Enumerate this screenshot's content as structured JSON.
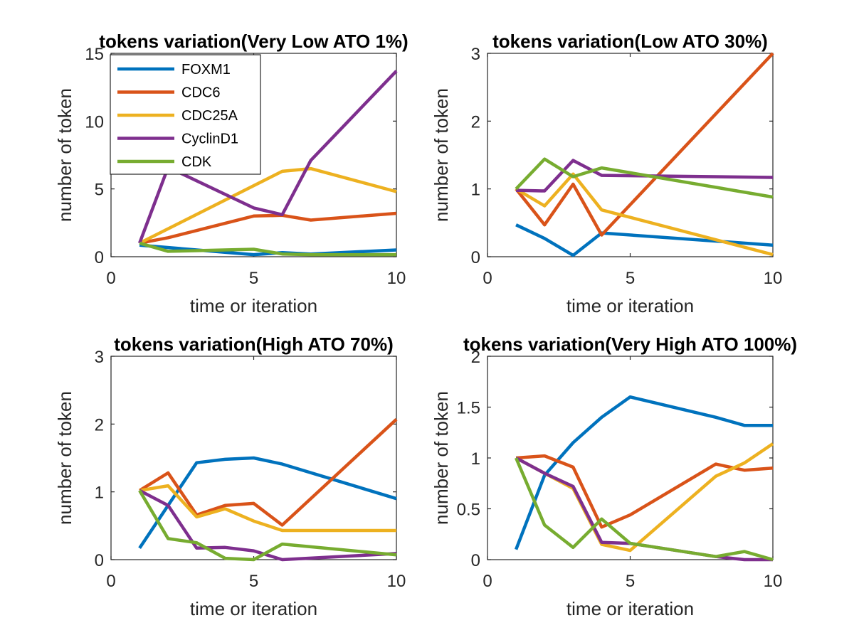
{
  "series_styles": [
    {
      "name": "FOXM1",
      "color": "#0072BD"
    },
    {
      "name": "CDC6",
      "color": "#D95319"
    },
    {
      "name": "CDC25A",
      "color": "#EDB120"
    },
    {
      "name": "CyclinD1",
      "color": "#7E2F8E"
    },
    {
      "name": "CDK",
      "color": "#77AC30"
    }
  ],
  "chart_data": [
    {
      "type": "line",
      "title": "tokens variation(Very Low ATO 1%)",
      "xlabel": "time or iteration",
      "ylabel": "number of token",
      "xlim": [
        0,
        10
      ],
      "ylim": [
        0,
        15
      ],
      "xticks": [
        0,
        5,
        10
      ],
      "yticks": [
        0,
        5,
        10,
        15
      ],
      "grid": false,
      "legend": "top-left",
      "series": [
        {
          "name": "FOXM1",
          "x": [
            1,
            5,
            6,
            7,
            10
          ],
          "y": [
            0.85,
            0.15,
            0.3,
            0.2,
            0.5
          ]
        },
        {
          "name": "CDC6",
          "x": [
            1,
            2,
            5,
            6,
            7,
            10
          ],
          "y": [
            1.0,
            1.4,
            3.0,
            3.05,
            2.7,
            3.2
          ]
        },
        {
          "name": "CDC25A",
          "x": [
            1,
            6,
            7,
            10
          ],
          "y": [
            1.0,
            6.3,
            6.5,
            4.8
          ]
        },
        {
          "name": "CyclinD1",
          "x": [
            1,
            2,
            5,
            6,
            7,
            10
          ],
          "y": [
            1.0,
            6.6,
            3.6,
            3.1,
            7.1,
            13.7
          ]
        },
        {
          "name": "CDK",
          "x": [
            1,
            2,
            5,
            6,
            7,
            10
          ],
          "y": [
            1.0,
            0.4,
            0.55,
            0.2,
            0.15,
            0.15
          ]
        }
      ]
    },
    {
      "type": "line",
      "title": "tokens variation(Low ATO 30%)",
      "xlabel": "time or iteration",
      "ylabel": "number of token",
      "xlim": [
        0,
        10
      ],
      "ylim": [
        0,
        3
      ],
      "xticks": [
        0,
        5,
        10
      ],
      "yticks": [
        0,
        1,
        2,
        3
      ],
      "grid": false,
      "series": [
        {
          "name": "FOXM1",
          "x": [
            1,
            2,
            3,
            4,
            10
          ],
          "y": [
            0.47,
            0.27,
            0.02,
            0.35,
            0.17
          ]
        },
        {
          "name": "CDC6",
          "x": [
            1,
            2,
            3,
            4,
            10
          ],
          "y": [
            1.0,
            0.47,
            1.07,
            0.32,
            3.0
          ]
        },
        {
          "name": "CDC25A",
          "x": [
            1,
            2,
            3,
            4,
            10
          ],
          "y": [
            1.0,
            0.75,
            1.22,
            0.69,
            0.03
          ]
        },
        {
          "name": "CyclinD1",
          "x": [
            1,
            2,
            3,
            4,
            10
          ],
          "y": [
            0.98,
            0.97,
            1.42,
            1.2,
            1.17
          ]
        },
        {
          "name": "CDK",
          "x": [
            1,
            2,
            3,
            4,
            10
          ],
          "y": [
            1.0,
            1.44,
            1.18,
            1.31,
            0.88
          ]
        }
      ]
    },
    {
      "type": "line",
      "title": "tokens variation(High ATO 70%)",
      "xlabel": "time or iteration",
      "ylabel": "number of token",
      "xlim": [
        0,
        10
      ],
      "ylim": [
        0,
        3
      ],
      "xticks": [
        0,
        5,
        10
      ],
      "yticks": [
        0,
        1,
        2,
        3
      ],
      "grid": false,
      "series": [
        {
          "name": "FOXM1",
          "x": [
            1,
            3,
            4,
            5,
            6,
            10
          ],
          "y": [
            0.17,
            1.43,
            1.48,
            1.5,
            1.41,
            0.9
          ]
        },
        {
          "name": "CDC6",
          "x": [
            1,
            2,
            3,
            4,
            5,
            6,
            10
          ],
          "y": [
            1.02,
            1.28,
            0.66,
            0.8,
            0.83,
            0.51,
            2.07
          ]
        },
        {
          "name": "CDC25A",
          "x": [
            1,
            2,
            3,
            4,
            5,
            6,
            10
          ],
          "y": [
            1.02,
            1.09,
            0.63,
            0.75,
            0.57,
            0.43,
            0.43
          ]
        },
        {
          "name": "CyclinD1",
          "x": [
            1,
            2,
            3,
            4,
            5,
            6,
            10
          ],
          "y": [
            1.02,
            0.8,
            0.17,
            0.18,
            0.13,
            0.0,
            0.09
          ]
        },
        {
          "name": "CDK",
          "x": [
            1,
            2,
            3,
            4,
            5,
            6,
            10
          ],
          "y": [
            1.02,
            0.31,
            0.25,
            0.02,
            0.0,
            0.23,
            0.07
          ]
        }
      ]
    },
    {
      "type": "line",
      "title": "tokens variation(Very High ATO 100%)",
      "xlabel": "time or iteration",
      "ylabel": "number of token",
      "xlim": [
        0,
        10
      ],
      "ylim": [
        0,
        2
      ],
      "xticks": [
        0,
        5,
        10
      ],
      "yticks": [
        0,
        0.5,
        1,
        1.5,
        2
      ],
      "grid": false,
      "series": [
        {
          "name": "FOXM1",
          "x": [
            1,
            2,
            3,
            4,
            5,
            8,
            9,
            10
          ],
          "y": [
            0.1,
            0.83,
            1.15,
            1.4,
            1.6,
            1.4,
            1.32,
            1.32
          ]
        },
        {
          "name": "CDC6",
          "x": [
            1,
            2,
            3,
            4,
            5,
            8,
            9,
            10
          ],
          "y": [
            1.0,
            1.02,
            0.91,
            0.32,
            0.44,
            0.94,
            0.88,
            0.9
          ]
        },
        {
          "name": "CDC25A",
          "x": [
            1,
            2,
            3,
            4,
            5,
            8,
            9,
            10
          ],
          "y": [
            1.0,
            0.85,
            0.7,
            0.15,
            0.09,
            0.82,
            0.95,
            1.14
          ]
        },
        {
          "name": "CyclinD1",
          "x": [
            1,
            2,
            3,
            4,
            5,
            8,
            9,
            10
          ],
          "y": [
            1.0,
            0.85,
            0.72,
            0.17,
            0.16,
            0.03,
            0.0,
            0.0
          ]
        },
        {
          "name": "CDK",
          "x": [
            1,
            2,
            3,
            4,
            5,
            8,
            9,
            10
          ],
          "y": [
            1.0,
            0.34,
            0.12,
            0.4,
            0.16,
            0.03,
            0.08,
            0.0
          ]
        }
      ]
    }
  ]
}
